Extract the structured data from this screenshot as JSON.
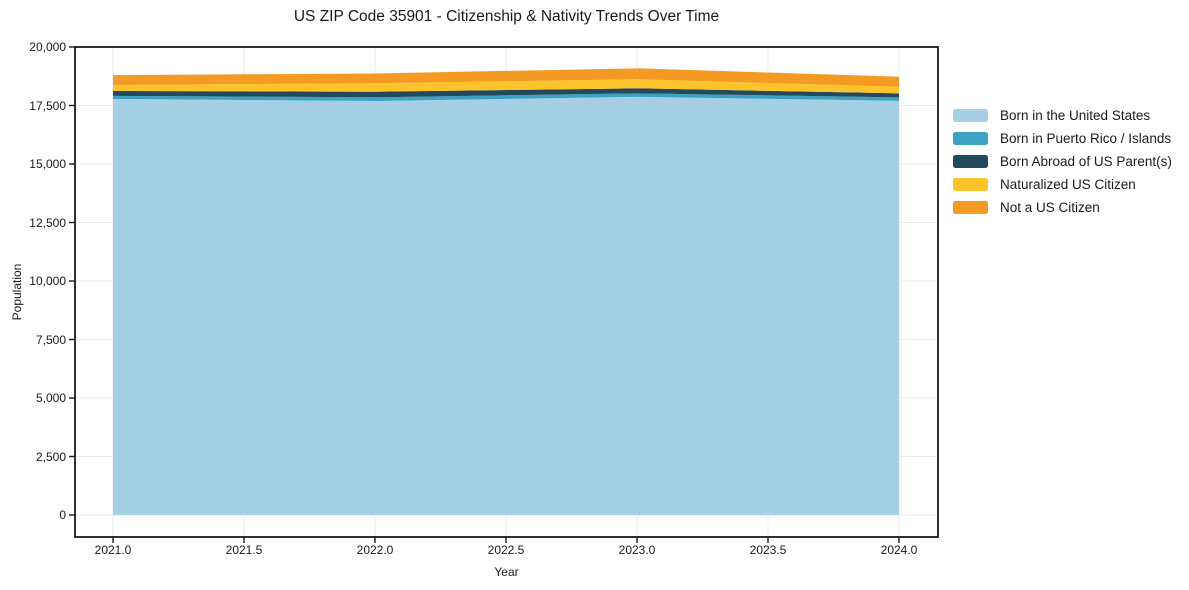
{
  "chart_data": {
    "type": "area",
    "stacked": true,
    "title": "US ZIP Code 35901 - Citizenship & Nativity Trends Over Time",
    "xlabel": "Year",
    "ylabel": "Population",
    "x": [
      2021,
      2022,
      2023,
      2024
    ],
    "series": [
      {
        "name": "Born in the United States",
        "color": "#a4cfe5",
        "values": [
          17780,
          17690,
          17870,
          17700
        ]
      },
      {
        "name": "Born in Puerto Rico / Islands",
        "color": "#3ba3c1",
        "values": [
          130,
          160,
          150,
          145
        ]
      },
      {
        "name": "Born Abroad of US Parent(s)",
        "color": "#234a5c",
        "values": [
          210,
          240,
          215,
          175
        ]
      },
      {
        "name": "Naturalized US Citizen",
        "color": "#fcc32a",
        "values": [
          260,
          360,
          385,
          280
        ]
      },
      {
        "name": "Not a US Citizen",
        "color": "#f59a23",
        "values": [
          420,
          420,
          470,
          430
        ]
      }
    ],
    "stacked_totals": [
      18800,
      18870,
      19090,
      18730
    ],
    "xticks": [
      2021.0,
      2021.5,
      2022.0,
      2022.5,
      2023.0,
      2023.5,
      2024.0
    ],
    "xtick_labels": [
      "2021.0",
      "2021.5",
      "2022.0",
      "2022.5",
      "2023.0",
      "2023.5",
      "2024.0"
    ],
    "yticks": [
      0,
      2500,
      5000,
      7500,
      10000,
      12500,
      15000,
      17500,
      20000
    ],
    "ytick_labels": [
      "0",
      "2,500",
      "5,000",
      "7,500",
      "10,000",
      "12,500",
      "15,000",
      "17,500",
      "20,000"
    ],
    "ylim": [
      0,
      20000
    ],
    "grid": true,
    "grid_color": "#ebebeb",
    "axis_color": "#1a1a1a",
    "legend_position": "right-outside"
  }
}
